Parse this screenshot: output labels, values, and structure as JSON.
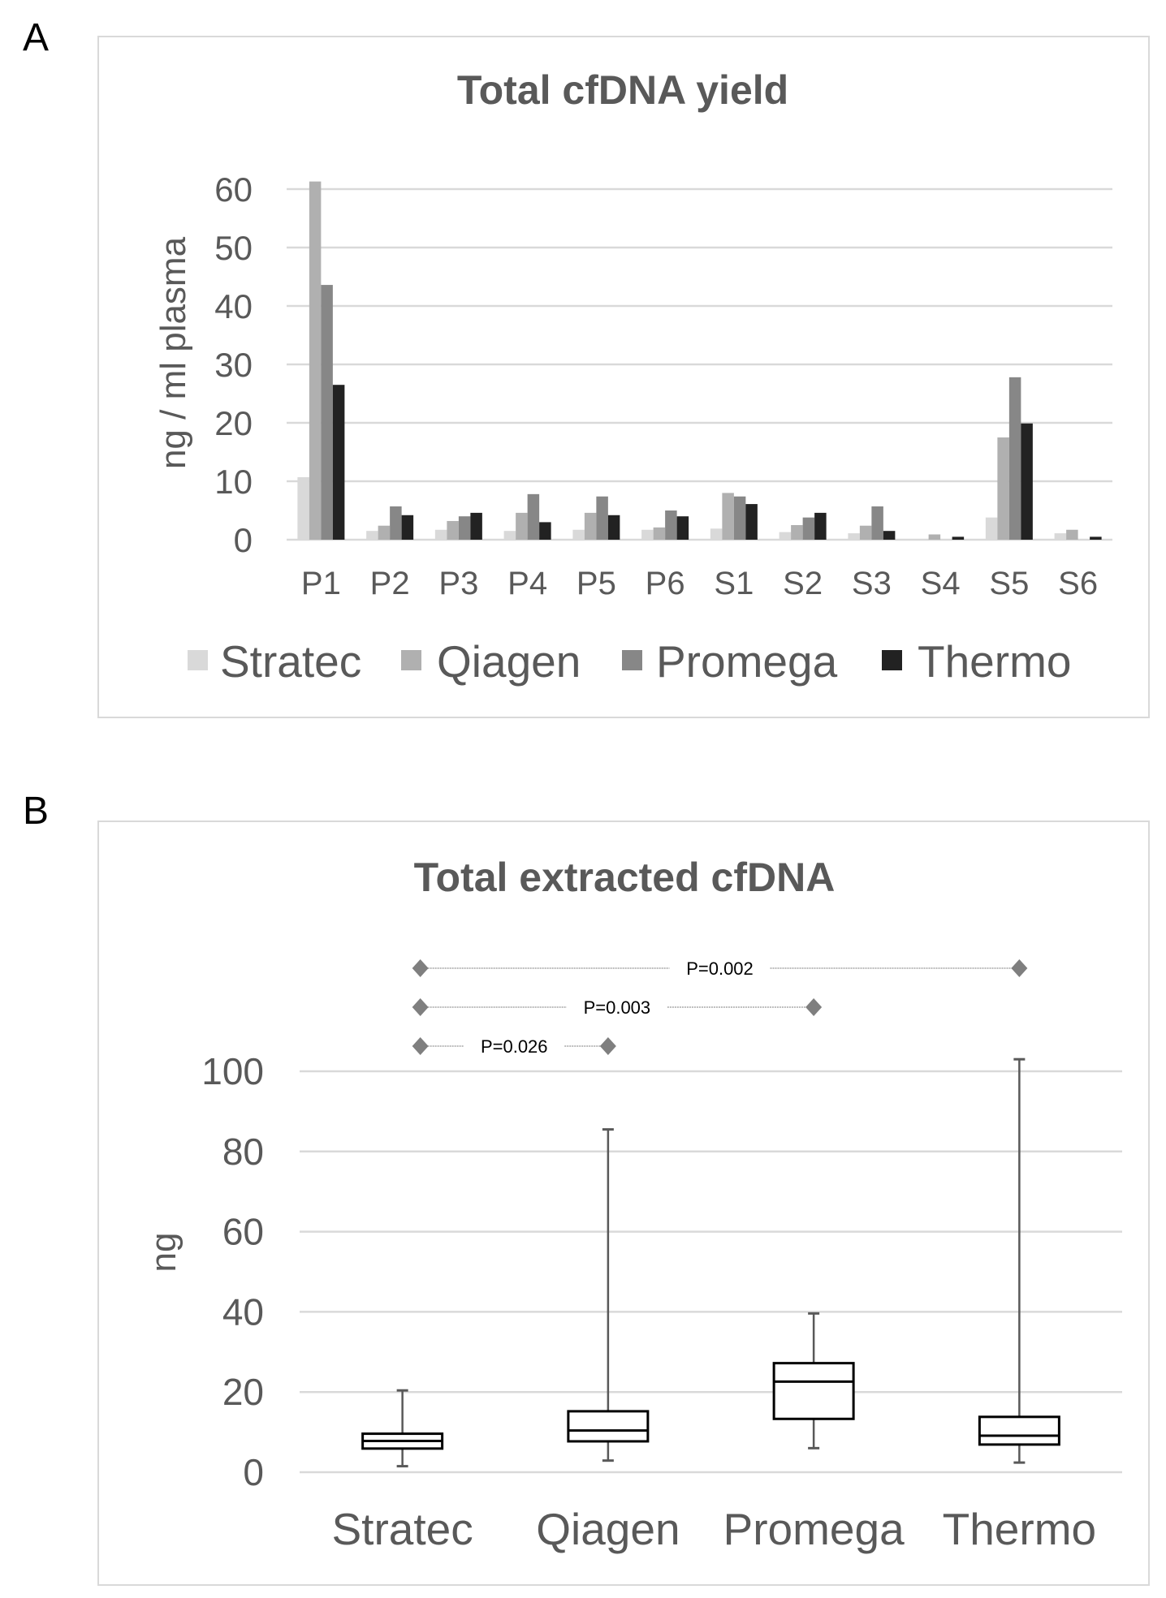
{
  "panels": {
    "a": "A",
    "b": "B"
  },
  "chart_data": [
    {
      "type": "bar",
      "title": "Total cfDNA yield",
      "xlabel": "",
      "ylabel": "ng / ml plasma",
      "ylim": [
        0,
        60
      ],
      "yticks": [
        "0",
        "10",
        "20",
        "30",
        "40",
        "50",
        "60"
      ],
      "grid": true,
      "legend": "bottom",
      "categories": [
        "P1",
        "P2",
        "P3",
        "P4",
        "P5",
        "P6",
        "S1",
        "S2",
        "S3",
        "S4",
        "S5",
        "S6"
      ],
      "series": [
        {
          "name": "Stratec",
          "color": "#d9d9d9",
          "values": [
            10.7,
            1.5,
            1.7,
            1.5,
            1.7,
            1.7,
            1.9,
            1.3,
            1.1,
            0,
            3.8,
            1.1
          ]
        },
        {
          "name": "Qiagen",
          "color": "#b0b0b0",
          "values": [
            61.3,
            2.4,
            3.2,
            4.6,
            4.6,
            2.1,
            8.0,
            2.5,
            2.4,
            0.9,
            17.5,
            1.7
          ]
        },
        {
          "name": "Promega",
          "color": "#878787",
          "values": [
            43.6,
            5.7,
            4.0,
            7.8,
            7.4,
            5.0,
            7.4,
            3.8,
            5.7,
            0,
            27.8,
            0
          ]
        },
        {
          "name": "Thermo",
          "color": "#222222",
          "values": [
            26.5,
            4.2,
            4.6,
            3.0,
            4.2,
            4.0,
            6.1,
            4.6,
            1.5,
            0.5,
            19.9,
            0.5
          ]
        }
      ]
    },
    {
      "type": "box",
      "title": "Total extracted cfDNA",
      "xlabel": "",
      "ylabel": "ng",
      "ylim": [
        0,
        100
      ],
      "yticks": [
        "0",
        "20",
        "40",
        "60",
        "80",
        "100"
      ],
      "grid": true,
      "categories": [
        "Stratec",
        "Qiagen",
        "Promega",
        "Thermo"
      ],
      "boxes": [
        {
          "min": 1.5,
          "q1": 5.9,
          "median": 7.8,
          "q3": 9.6,
          "max": 20.4
        },
        {
          "min": 2.9,
          "q1": 7.7,
          "median": 10.4,
          "q3": 15.2,
          "max": 85.5
        },
        {
          "min": 6.0,
          "q1": 13.3,
          "median": 22.6,
          "q3": 27.2,
          "max": 39.6
        },
        {
          "min": 2.4,
          "q1": 6.9,
          "median": 9.1,
          "q3": 13.8,
          "max": 103
        }
      ],
      "comparisons": [
        {
          "from": "Stratec",
          "to": "Thermo",
          "label": "P=0.002"
        },
        {
          "from": "Stratec",
          "to": "Promega",
          "label": "P=0.003"
        },
        {
          "from": "Stratec",
          "to": "Qiagen",
          "label": "P=0.026"
        }
      ],
      "marker_color": "#7f7f7f"
    }
  ]
}
